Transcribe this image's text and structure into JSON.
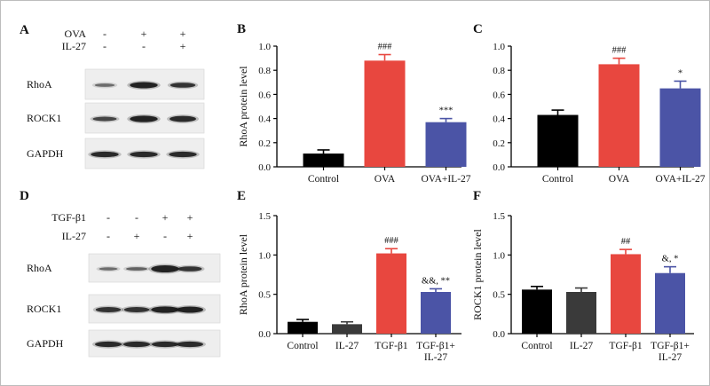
{
  "blot_top": {
    "letter": "A",
    "conditions": [
      {
        "label": "OVA",
        "signs": [
          "-",
          "+",
          "+"
        ]
      },
      {
        "label": "IL-27",
        "signs": [
          "-",
          "-",
          "+"
        ]
      }
    ],
    "rows": [
      "RhoA",
      "ROCK1",
      "GAPDH"
    ]
  },
  "blot_bottom": {
    "letter": "D",
    "conditions": [
      {
        "label": "TGF-β1",
        "signs": [
          "-",
          "-",
          "+",
          "+"
        ]
      },
      {
        "label": "IL-27",
        "signs": [
          "-",
          "+",
          "-",
          "+"
        ]
      }
    ],
    "rows": [
      "RhoA",
      "ROCK1",
      "GAPDH"
    ]
  },
  "colors": {
    "black": "#000000",
    "dark_gray": "#3a3a3a",
    "red": "#e8473f",
    "blue": "#4b54a6"
  },
  "chart_data": [
    {
      "letter": "B",
      "type": "bar",
      "ylabel": "RhoA protein level",
      "ylim": [
        0,
        1.0
      ],
      "yticks": [
        "0.0",
        "0.2",
        "0.4",
        "0.6",
        "0.8",
        "1.0"
      ],
      "categories": [
        "Control",
        "OVA",
        "OVA+IL-27"
      ],
      "values": [
        0.11,
        0.88,
        0.37
      ],
      "errors": [
        0.03,
        0.05,
        0.03
      ],
      "bar_colors": [
        "#000000",
        "#e8473f",
        "#4b54a6"
      ],
      "annotations": [
        "",
        "###",
        "***"
      ]
    },
    {
      "letter": "C",
      "type": "bar",
      "ylabel": "",
      "ylim": [
        0,
        1.0
      ],
      "yticks": [
        "0.0",
        "0.2",
        "0.4",
        "0.6",
        "0.8",
        "1.0"
      ],
      "categories": [
        "Control",
        "OVA",
        "OVA+IL-27"
      ],
      "values": [
        0.43,
        0.85,
        0.65
      ],
      "errors": [
        0.04,
        0.05,
        0.06
      ],
      "bar_colors": [
        "#000000",
        "#e8473f",
        "#4b54a6"
      ],
      "annotations": [
        "",
        "###",
        "*"
      ]
    },
    {
      "letter": "E",
      "type": "bar",
      "ylabel": "RhoA protein level",
      "ylim": [
        0,
        1.5
      ],
      "yticks": [
        "0.0",
        "0.5",
        "1.0",
        "1.5"
      ],
      "categories": [
        "Control",
        "IL-27",
        "TGF-β1",
        "TGF-β1+\nIL-27"
      ],
      "values": [
        0.15,
        0.12,
        1.02,
        0.53
      ],
      "errors": [
        0.03,
        0.03,
        0.06,
        0.04
      ],
      "bar_colors": [
        "#000000",
        "#3a3a3a",
        "#e8473f",
        "#4b54a6"
      ],
      "annotations": [
        "",
        "",
        "###",
        "&&, **"
      ]
    },
    {
      "letter": "F",
      "type": "bar",
      "ylabel": "ROCK1 protein level",
      "ylim": [
        0,
        1.5
      ],
      "yticks": [
        "0.0",
        "0.5",
        "1.0",
        "1.5"
      ],
      "categories": [
        "Control",
        "IL-27",
        "TGF-β1",
        "TGF-β1+\nIL-27"
      ],
      "values": [
        0.56,
        0.53,
        1.01,
        0.77
      ],
      "errors": [
        0.04,
        0.05,
        0.06,
        0.08
      ],
      "bar_colors": [
        "#000000",
        "#3a3a3a",
        "#e8473f",
        "#4b54a6"
      ],
      "annotations": [
        "",
        "",
        "##",
        "&, *"
      ]
    }
  ]
}
